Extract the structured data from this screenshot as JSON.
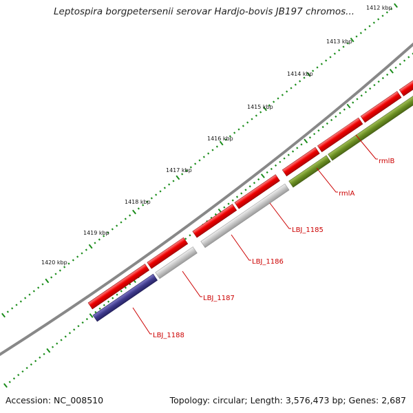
{
  "header": {
    "title": "Leptospira borgpetersenii serovar Hardjo-bovis JB197 chromos..."
  },
  "footer": {
    "accession": "Accession: NC_008510",
    "summary": "Topology: circular; Length: 3,576,473 bp; Genes: 2,687"
  },
  "ruler": {
    "labels": [
      "1412 kbp",
      "1413 kbp",
      "1414 kbp",
      "1415 kbp",
      "1416 kbp",
      "1417 kbp",
      "1418 kbp",
      "1419 kbp",
      "1420 kbp"
    ]
  },
  "genes": {
    "labels": [
      "rmlB",
      "rmlA",
      "LBJ_1185",
      "LBJ_1186",
      "LBJ_1187",
      "LBJ_1188"
    ]
  },
  "colors": {
    "forward_cds": "#ee0000",
    "reverse_cds_grey": "#bbbbbb",
    "reverse_cds_olive": "#6b8e23",
    "reverse_cds_navy": "#3f3a8c",
    "backbone": "#888888",
    "ticks": "#1a8c1a",
    "label_text": "#cc0000"
  }
}
